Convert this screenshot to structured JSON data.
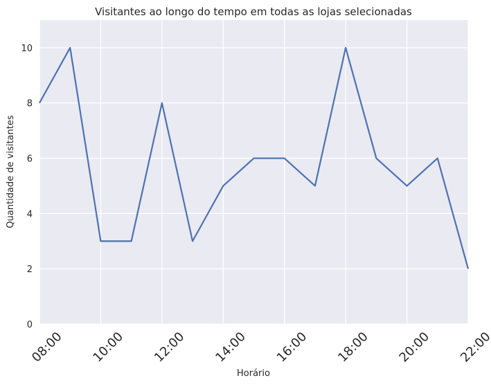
{
  "chart_data": {
    "type": "line",
    "title": "Visitantes ao longo do tempo em todas as lojas selecionadas",
    "xlabel": "Horário",
    "ylabel": "Quantidade de visitantes",
    "x": [
      8,
      9,
      10,
      11,
      12,
      13,
      14,
      15,
      16,
      17,
      18,
      19,
      20,
      21,
      22
    ],
    "series": [
      {
        "name": "Visitantes",
        "values": [
          8,
          10,
          3,
          3,
          8,
          3,
          5,
          6,
          6,
          5,
          10,
          6,
          5,
          6,
          2
        ]
      }
    ],
    "xlim": [
      8,
      22
    ],
    "ylim": [
      0,
      11
    ],
    "xticks": [
      8,
      10,
      12,
      14,
      16,
      18,
      20,
      22
    ],
    "xtick_labels": [
      "08:00",
      "10:00",
      "12:00",
      "14:00",
      "16:00",
      "18:00",
      "20:00",
      "22:00"
    ],
    "yticks": [
      0,
      2,
      4,
      6,
      8,
      10
    ],
    "ytick_labels": [
      "0",
      "2",
      "4",
      "6",
      "8",
      "10"
    ],
    "grid": true,
    "colors": {
      "background": "#eaeaf2",
      "grid": "#ffffff",
      "line": "#4c72b0",
      "text": "#262626"
    }
  }
}
